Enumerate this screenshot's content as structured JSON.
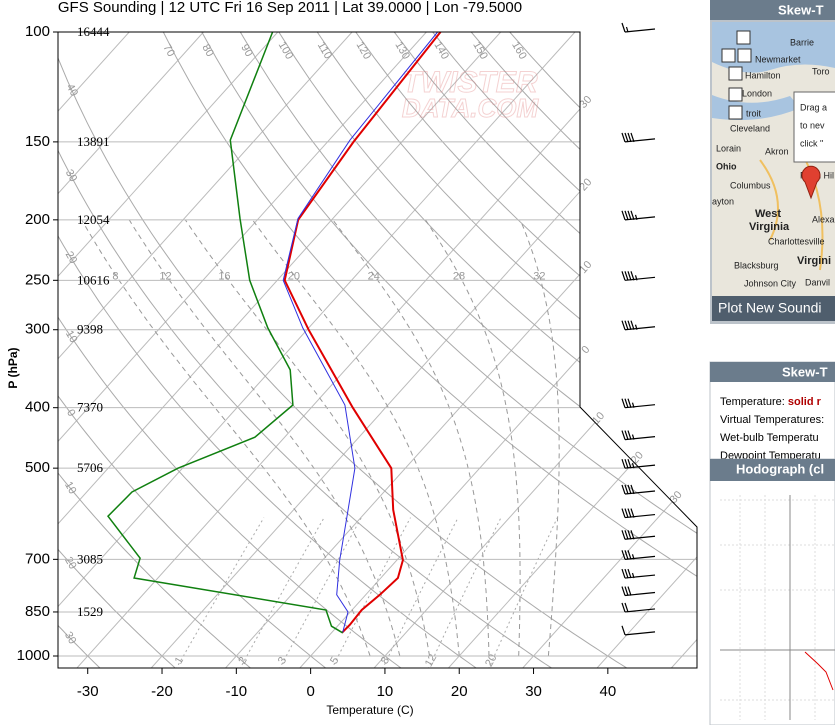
{
  "chart_data": {
    "type": "skewt",
    "title": "GFS Sounding | 12 UTC Fri 16 Sep 2011 | Lat 39.0000 | Lon -79.5000",
    "y_label": "P (hPa)",
    "x_label": "Temperature (C)",
    "xlim": [
      -34,
      52
    ],
    "xticks": [
      -30,
      -20,
      -10,
      0,
      10,
      20,
      30,
      40
    ],
    "ylim": [
      1000,
      100
    ],
    "log_y": true,
    "yticks": [
      100,
      150,
      200,
      250,
      300,
      400,
      500,
      700,
      850,
      1000
    ],
    "heights": [
      16444,
      13891,
      12054,
      10616,
      9398,
      7370,
      5706,
      3085,
      1529,
      null
    ],
    "grid": true,
    "series": [
      {
        "name": "Temperature:",
        "color": "#e00000",
        "width": 2,
        "pressure": [
          100,
          150,
          200,
          250,
          300,
          400,
          500,
          583,
          702,
          750,
          798,
          844,
          891,
          918
        ],
        "values": [
          -58.1,
          -56.5,
          -54.5,
          -49.0,
          -39.8,
          -24.4,
          -11.9,
          -6.6,
          0.8,
          2.3,
          1.9,
          1.3,
          1.5,
          1.4
        ]
      },
      {
        "name": "Wet-bulb Temperatu",
        "color": "#3030e0",
        "width": 1,
        "pressure": [
          100,
          149,
          199,
          250,
          298,
          396,
          500,
          600,
          702,
          798,
          850,
          918
        ],
        "values": [
          -58.5,
          -57.2,
          -54.7,
          -49.2,
          -40.8,
          -25.8,
          -16.8,
          -11.9,
          -7.7,
          -3.9,
          -0.3,
          1.5
        ]
      },
      {
        "name": "Dewpoint Temperatu",
        "color": "#108010",
        "width": 1.5,
        "pressure": [
          100,
          149,
          199,
          250,
          298,
          348,
          396,
          446,
          500,
          546,
          597,
          697,
          750,
          844,
          896,
          918
        ],
        "values": [
          -80.7,
          -73.3,
          -62.5,
          -53.7,
          -45.5,
          -37.4,
          -32.8,
          -34.0,
          -40.6,
          -43.9,
          -44.2,
          -34.8,
          -33.2,
          -3.5,
          -0.8,
          1.5
        ]
      }
    ],
    "isotherm_labels": [
      {
        "value": -30,
        "label": "30"
      },
      {
        "value": -20,
        "label": "20"
      },
      {
        "value": -10,
        "label": "10"
      },
      0,
      10,
      20,
      30
    ],
    "dry_adiabats": [
      {
        "value": -30,
        "label": "30"
      },
      {
        "value": -20,
        "label": "20"
      },
      {
        "value": -10,
        "label": "10"
      },
      0,
      10,
      20,
      30,
      40,
      70,
      80,
      90,
      100,
      110,
      120,
      130,
      140,
      150,
      160
    ],
    "moist_adiabats": [
      8,
      12,
      16,
      20,
      24,
      28,
      32
    ],
    "mixing_ratios": [
      1,
      2,
      3,
      5,
      8,
      12,
      20
    ],
    "winds": {
      "pressure": [
        100,
        150,
        200,
        250,
        300,
        400,
        450,
        500,
        550,
        600,
        650,
        700,
        750,
        800,
        850,
        925
      ],
      "speed": [
        15,
        40,
        45,
        45,
        45,
        35,
        35,
        35,
        40,
        40,
        40,
        35,
        35,
        30,
        20,
        10
      ]
    },
    "watermark": [
      "TWISTER",
      "DATA.COM"
    ]
  },
  "side": {
    "map_header": "Skew-T",
    "map_labels": [
      "Barrie",
      "Newmarket",
      "Hamilton",
      "Toro",
      "London",
      "troit",
      "Cleveland",
      "Lorain",
      "Akron",
      "Ohio",
      "Columbus",
      "Penn Hil",
      "ayton",
      "West",
      "Virginia",
      "Alexa",
      "Charlottesville",
      "Virgini",
      "Blacksburg",
      "Johnson City",
      "Danvil"
    ],
    "popup": [
      "Drag a",
      "to nev",
      "click \""
    ],
    "button": "Plot New Soundi",
    "legend_header": "Skew-T",
    "legend_temp_style": "solid r",
    "legend_virtual": "Virtual Temperatures:",
    "hodo_header": "Hodograph (cl"
  }
}
